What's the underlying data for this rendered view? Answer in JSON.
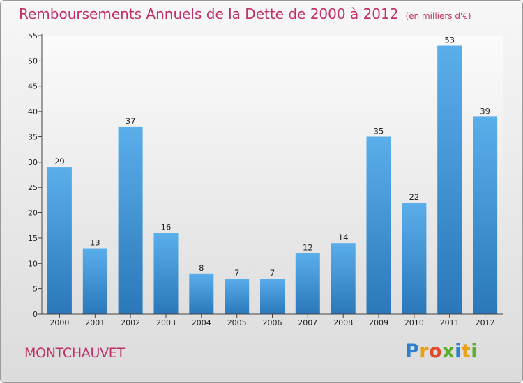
{
  "title": {
    "main": "Remboursements Annuels de la Dette de 2000 à 2012",
    "unit": "(en milliers d'€)"
  },
  "commune": "MONTCHAUVET",
  "logo": {
    "letters": [
      "P",
      "r",
      "o",
      "x",
      "i",
      "t",
      "i"
    ],
    "colors": [
      "#2f7fd0",
      "#e8a21a",
      "#e34a29",
      "#5cae2e",
      "#2f7fd0",
      "#e8a21a",
      "#5cae2e"
    ]
  },
  "chart_data": {
    "type": "bar",
    "categories": [
      "2000",
      "2001",
      "2002",
      "2003",
      "2004",
      "2005",
      "2006",
      "2007",
      "2008",
      "2009",
      "2010",
      "2011",
      "2012"
    ],
    "values": [
      29,
      13,
      37,
      16,
      8,
      7,
      7,
      12,
      14,
      35,
      22,
      53,
      39
    ],
    "ylim": [
      0,
      55
    ],
    "yticks": [
      0,
      5,
      10,
      15,
      20,
      25,
      30,
      35,
      40,
      45,
      50,
      55
    ],
    "grid": false,
    "bar_color_top": "#5aaeea",
    "bar_color_bottom": "#2a78ba"
  }
}
